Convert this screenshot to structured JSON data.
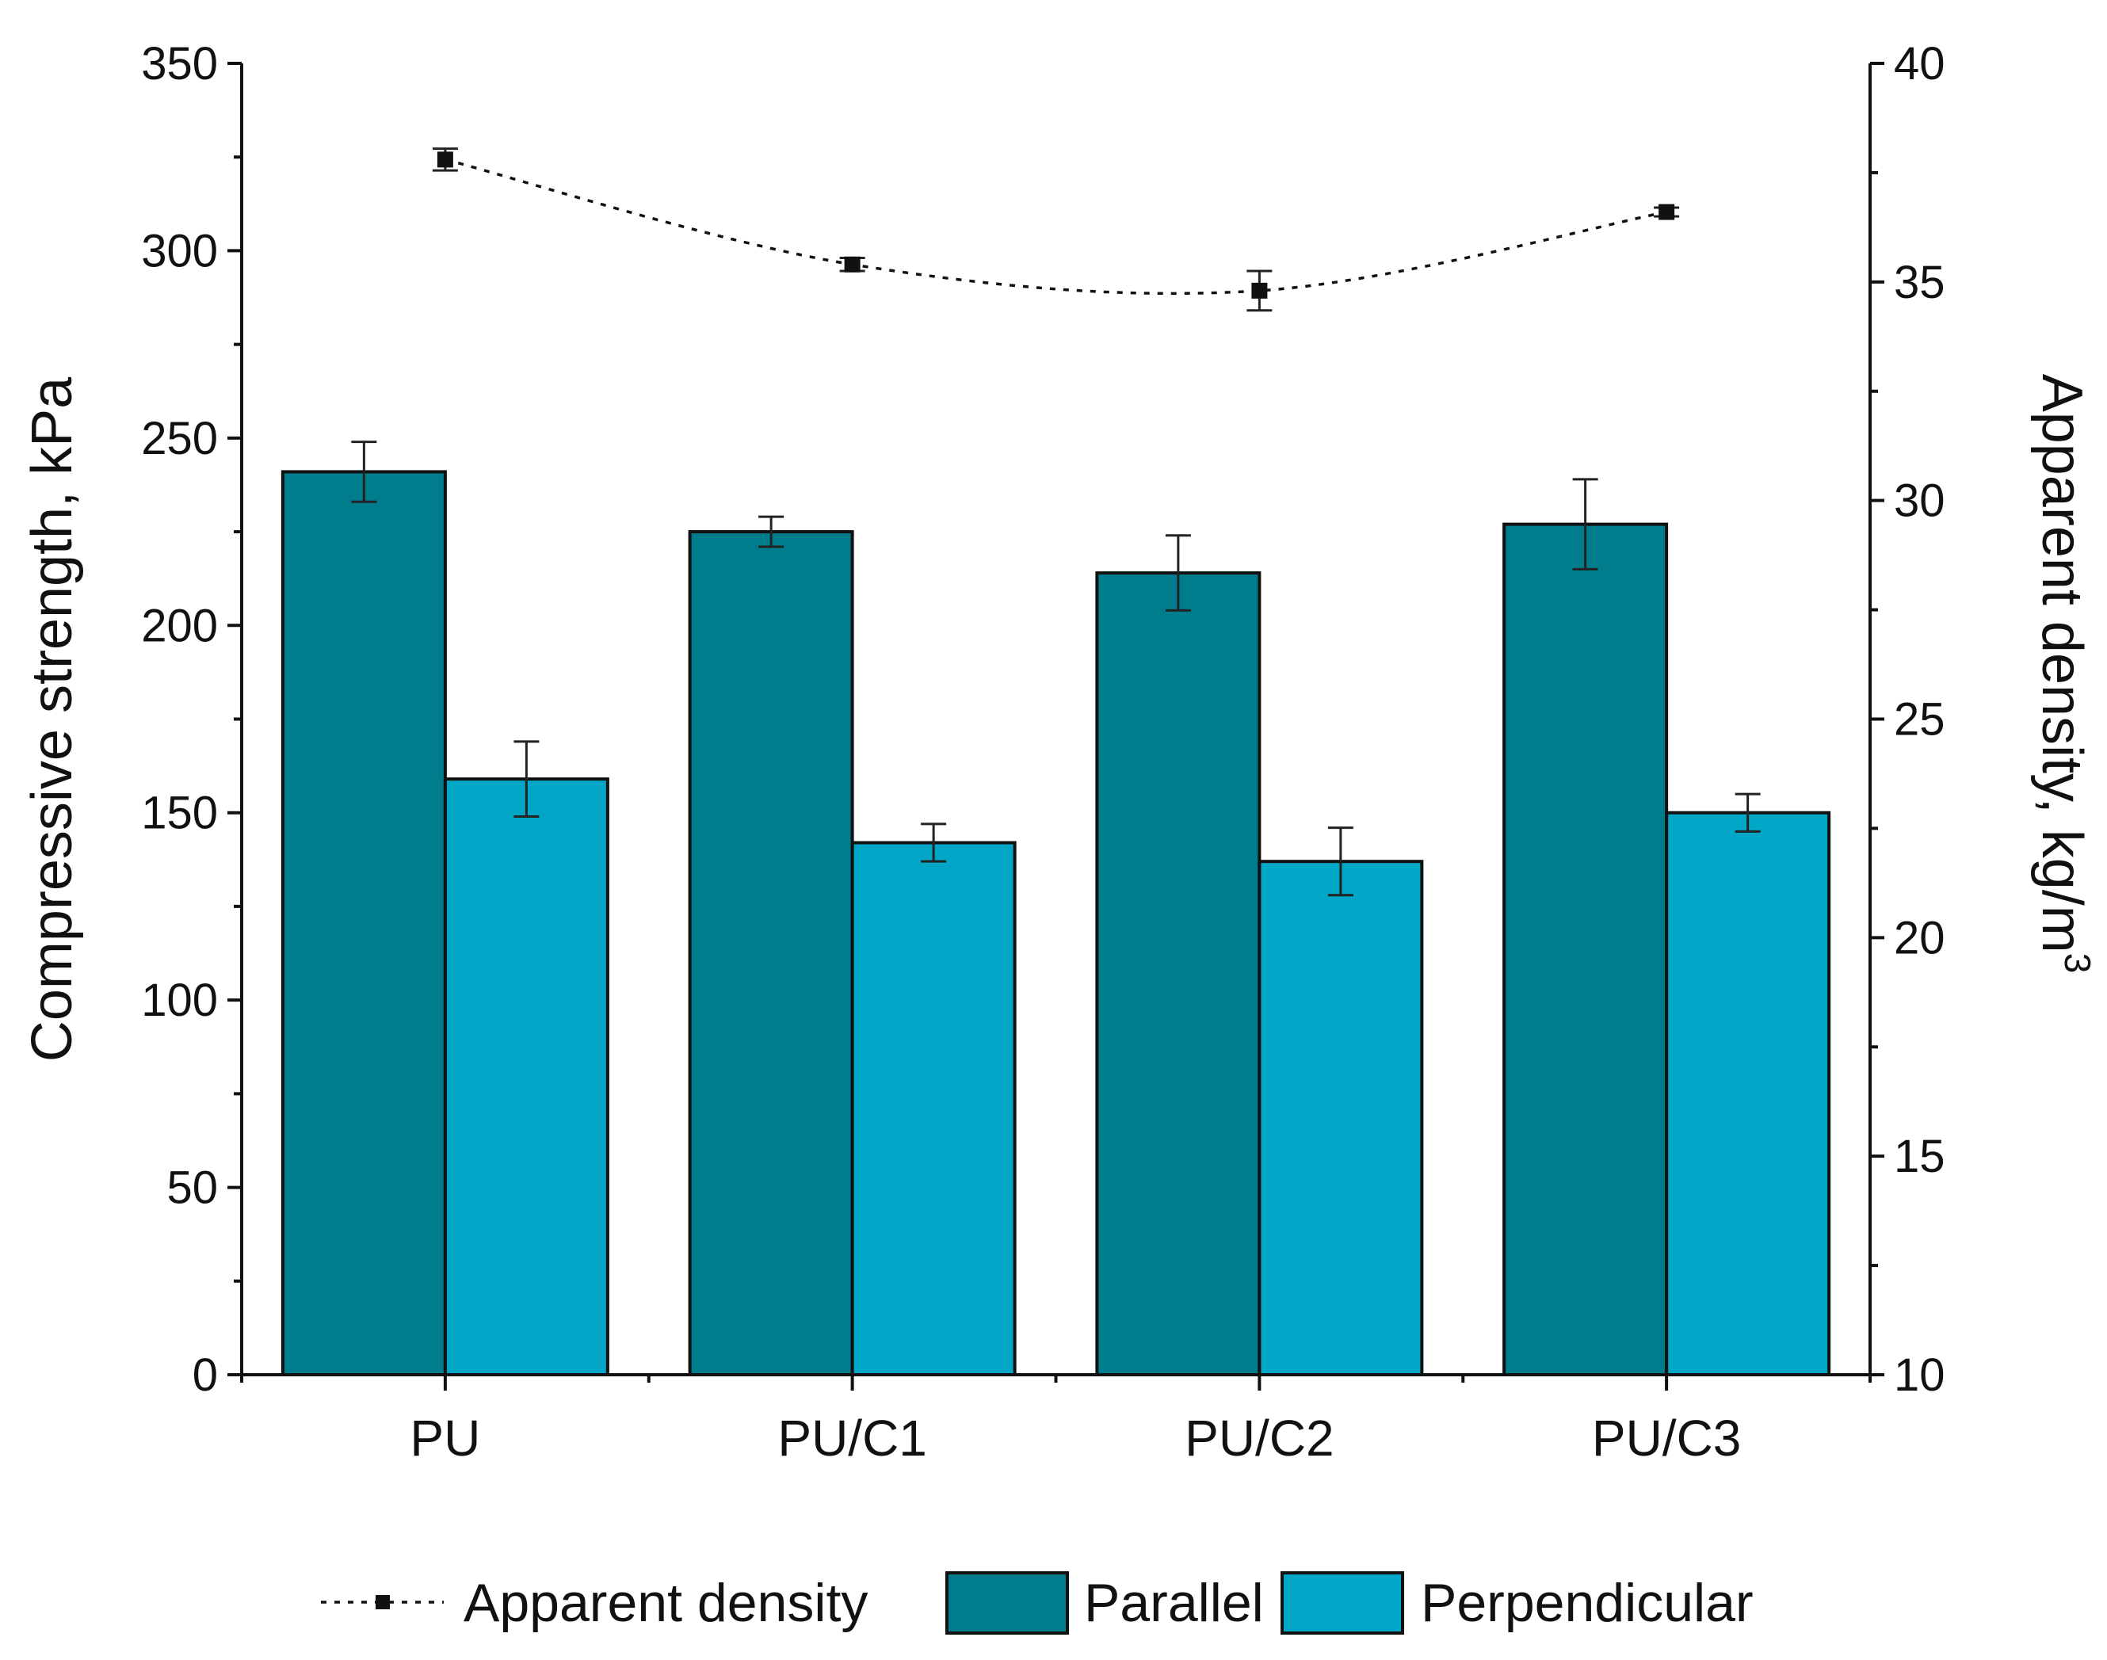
{
  "chart_data": {
    "type": "bar",
    "categories": [
      "PU",
      "PU/C1",
      "PU/C2",
      "PU/C3"
    ],
    "series": [
      {
        "name": "Parallel",
        "axis": "left",
        "values": [
          241,
          225,
          214,
          227
        ],
        "errors": [
          8,
          4,
          10,
          12
        ],
        "color": "#007D8C"
      },
      {
        "name": "Perpendicular",
        "axis": "left",
        "values": [
          159,
          142,
          137,
          150
        ],
        "errors": [
          10,
          5,
          9,
          5
        ],
        "color": "#02A6C7"
      },
      {
        "name": "Apparent density",
        "type": "line",
        "axis": "right",
        "values": [
          37.8,
          35.4,
          34.8,
          36.6
        ],
        "errors": [
          0.25,
          0.15,
          0.45,
          0.1
        ],
        "color": "#111111"
      }
    ],
    "left_axis": {
      "label": "Compressive strength, kPa",
      "range": [
        0,
        350
      ],
      "ticks": [
        "0",
        "50",
        "100",
        "150",
        "200",
        "250",
        "300",
        "350"
      ]
    },
    "right_axis": {
      "label_main": "Apparent density, kg/m",
      "label_sup": "3",
      "range": [
        10,
        40
      ],
      "ticks": [
        "10",
        "15",
        "20",
        "25",
        "30",
        "35",
        "40"
      ]
    },
    "legend": {
      "position": "bottom",
      "items": [
        "Apparent density",
        "Parallel",
        "Perpendicular"
      ]
    }
  }
}
